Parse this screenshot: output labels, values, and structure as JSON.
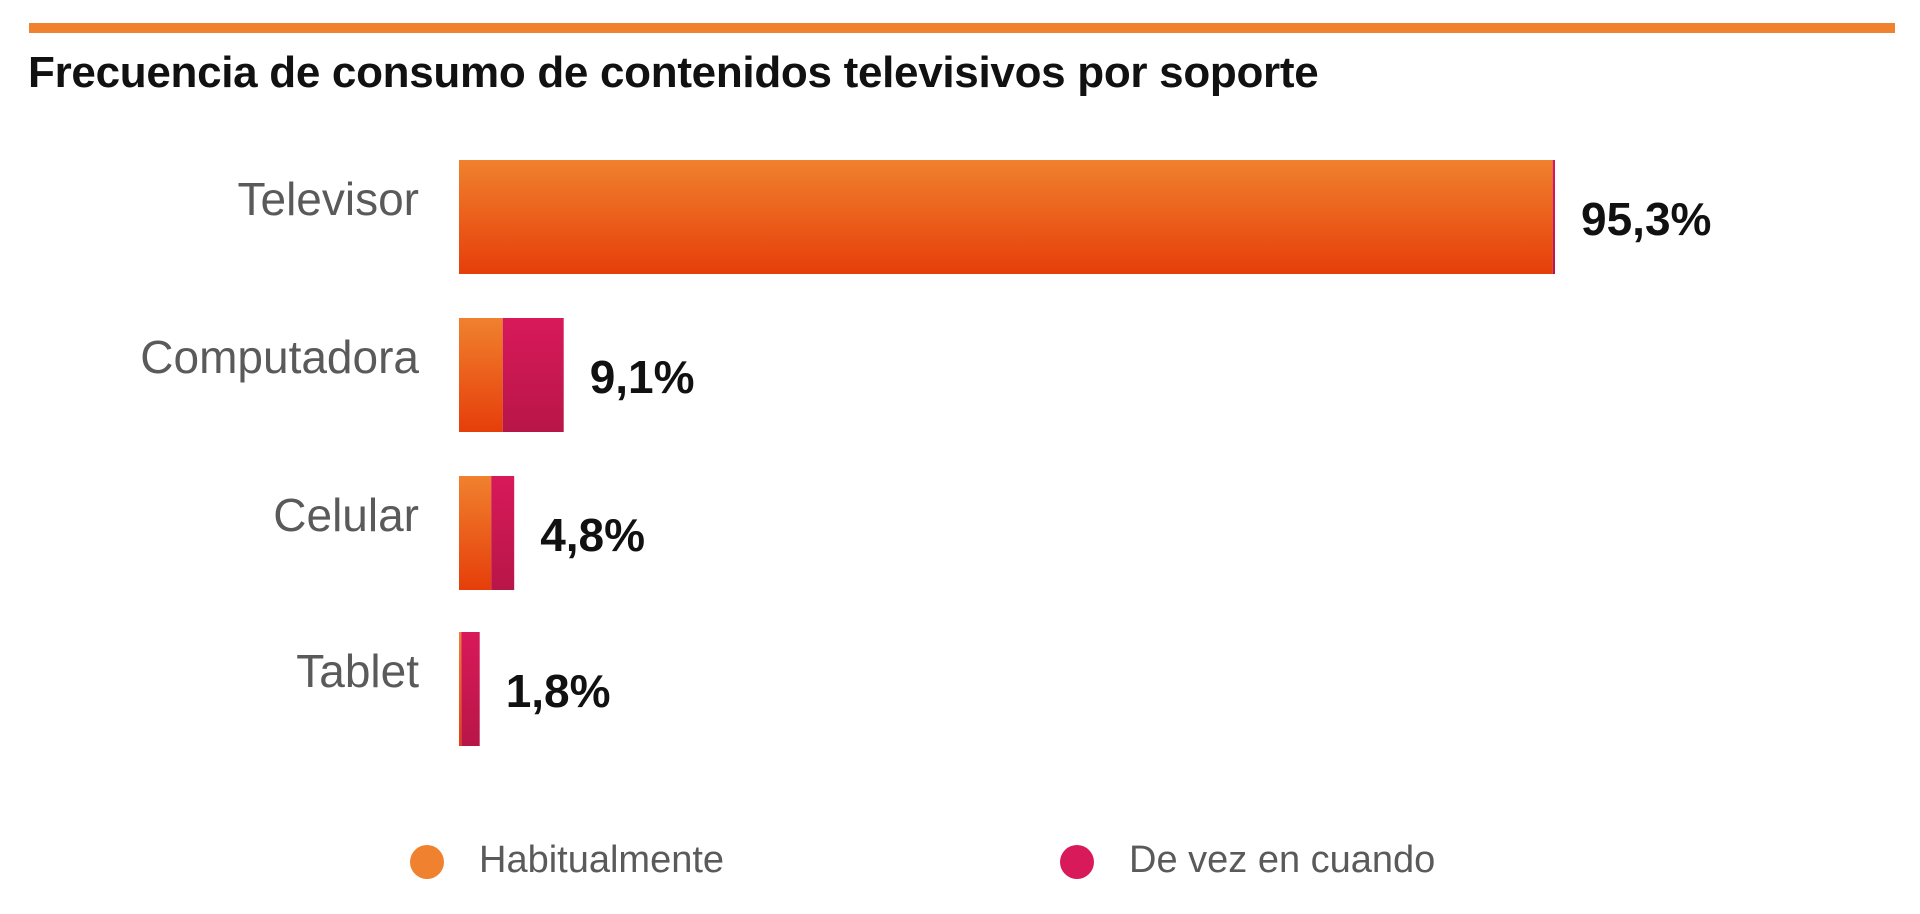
{
  "chart_data": {
    "type": "bar",
    "orientation": "horizontal",
    "stacked": true,
    "title": "Frecuencia de consumo de contenidos televisivos por soporte",
    "categories": [
      "Televisor",
      "Computadora",
      "Celular",
      "Tablet"
    ],
    "totals": [
      95.3,
      9.1,
      4.8,
      1.8
    ],
    "value_labels": [
      "95,3%",
      "9,1%",
      "4,8%",
      "1,8%"
    ],
    "series": [
      {
        "name": "Habitualmente",
        "values": [
          95.1,
          3.8,
          2.8,
          0.2
        ],
        "color": "#f0812e"
      },
      {
        "name": "De vez en cuando",
        "values": [
          0.2,
          5.3,
          2.0,
          1.6
        ],
        "color": "#d8195a"
      }
    ],
    "xlim": [
      0,
      100
    ],
    "grid": false,
    "legend_position": "bottom"
  },
  "colors": {
    "accent_rule": "#f0812e",
    "bar_top_orange": "#f0812e",
    "bar_bottom_orange": "#e63e0a",
    "bar_top_magenta": "#d8195a",
    "bar_bottom_magenta": "#b81648"
  }
}
